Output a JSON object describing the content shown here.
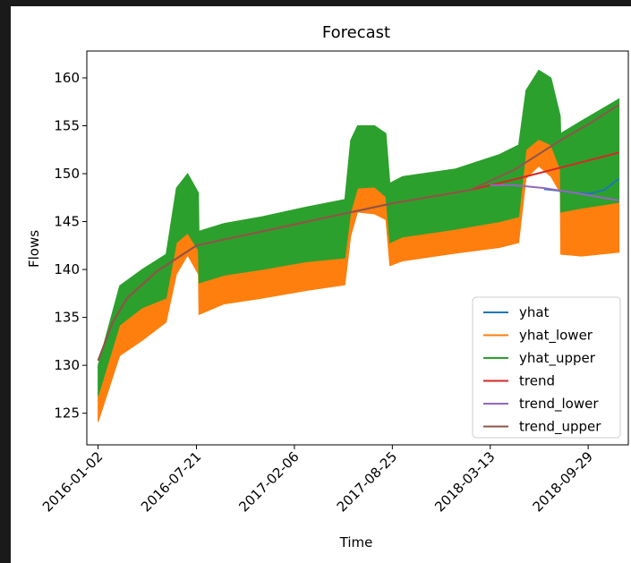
{
  "chart_data": {
    "type": "line",
    "title": "Forecast",
    "xlabel": "Time",
    "ylabel": "Flows",
    "x_range": [
      "2015-12-10",
      "2018-12-20"
    ],
    "ylim": [
      121.7,
      162.8
    ],
    "x_ticks": [
      "2016-01-02",
      "2016-07-21",
      "2017-02-06",
      "2017-08-25",
      "2018-03-13",
      "2018-09-29"
    ],
    "y_ticks": [
      125,
      130,
      135,
      140,
      145,
      150,
      155,
      160
    ],
    "grid": false,
    "legend_position": "lower right",
    "band_series": [
      {
        "name": "yhat_lower",
        "color": "#ff7f0e",
        "x": [
          "2016-01-02",
          "2016-02-15",
          "2016-04-01",
          "2016-05-20",
          "2016-06-10",
          "2016-07-03",
          "2016-07-25",
          "2016-07-26",
          "2016-09-15",
          "2016-12-01",
          "2017-03-01",
          "2017-05-20",
          "2017-06-01",
          "2017-06-15",
          "2017-07-20",
          "2017-08-12",
          "2017-08-20",
          "2017-09-15",
          "2018-01-01",
          "2018-04-01",
          "2018-05-10",
          "2018-05-25",
          "2018-06-20",
          "2018-07-15",
          "2018-08-03",
          "2018-08-04",
          "2018-09-15",
          "2018-12-01"
        ],
        "lo": [
          124.1,
          131.0,
          132.6,
          134.5,
          139.5,
          141.5,
          139.5,
          135.3,
          136.4,
          137.0,
          137.8,
          138.4,
          143.5,
          146.0,
          145.8,
          145.2,
          140.4,
          140.9,
          141.7,
          142.3,
          142.8,
          149.5,
          150.8,
          149.7,
          148.0,
          141.6,
          141.4,
          141.8
        ],
        "hi": [
          126.8,
          134.2,
          136.0,
          137.0,
          142.8,
          143.8,
          142.0,
          138.6,
          139.4,
          140.0,
          140.8,
          141.2,
          146.0,
          148.5,
          148.6,
          147.6,
          142.8,
          143.4,
          144.2,
          145.0,
          145.5,
          152.5,
          153.6,
          153.0,
          150.5,
          146.0,
          146.4,
          147.0
        ]
      },
      {
        "name": "yhat_upper",
        "color": "#2ca02c",
        "x": [
          "2016-01-02",
          "2016-02-15",
          "2016-04-01",
          "2016-05-20",
          "2016-06-10",
          "2016-07-03",
          "2016-07-25",
          "2016-07-26",
          "2016-09-15",
          "2016-12-01",
          "2017-03-01",
          "2017-05-20",
          "2017-06-01",
          "2017-06-15",
          "2017-07-20",
          "2017-08-12",
          "2017-08-20",
          "2017-09-15",
          "2018-01-01",
          "2018-04-01",
          "2018-05-10",
          "2018-05-25",
          "2018-06-20",
          "2018-07-15",
          "2018-08-03",
          "2018-08-04",
          "2018-09-15",
          "2018-12-01"
        ],
        "lo": [
          126.8,
          134.2,
          136.0,
          137.0,
          142.8,
          143.8,
          142.0,
          138.6,
          139.4,
          140.0,
          140.8,
          141.2,
          146.0,
          148.5,
          148.6,
          147.6,
          142.8,
          143.4,
          144.2,
          145.0,
          145.5,
          152.5,
          153.6,
          153.0,
          150.5,
          146.0,
          146.4,
          147.0
        ],
        "hi": [
          130.0,
          138.3,
          140.0,
          141.6,
          148.5,
          150.0,
          148.0,
          144.0,
          144.8,
          145.5,
          146.5,
          147.3,
          153.5,
          155.0,
          155.0,
          154.2,
          149.0,
          149.7,
          150.5,
          152.0,
          153.0,
          158.7,
          160.8,
          160.0,
          156.0,
          154.2,
          155.5,
          157.8
        ]
      }
    ],
    "series": [
      {
        "name": "yhat",
        "color": "#1f77b4",
        "x": [
          "2018-07-01",
          "2018-08-04",
          "2018-09-01",
          "2018-10-01",
          "2018-11-01",
          "2018-12-01"
        ],
        "y": [
          148.4,
          148.2,
          148.0,
          147.9,
          148.3,
          149.5
        ]
      },
      {
        "name": "yhat_lower",
        "color": "#ff7f0e",
        "x": [],
        "y": []
      },
      {
        "name": "yhat_upper",
        "color": "#2ca02c",
        "x": [],
        "y": []
      },
      {
        "name": "trend",
        "color": "#d62728",
        "x": [
          "2016-01-02",
          "2016-02-01",
          "2016-03-01",
          "2016-05-01",
          "2016-07-21",
          "2016-10-01",
          "2017-01-01",
          "2017-04-01",
          "2017-07-01",
          "2017-08-25",
          "2017-11-01",
          "2018-02-01",
          "2018-05-01",
          "2018-08-01",
          "2018-12-01"
        ],
        "y": [
          130.5,
          134.5,
          137.0,
          139.8,
          142.5,
          143.3,
          144.3,
          145.3,
          146.3,
          146.9,
          147.5,
          148.3,
          149.4,
          150.6,
          152.2
        ]
      },
      {
        "name": "trend_lower",
        "color": "#9467bd",
        "x": [
          "2018-03-13",
          "2018-05-01",
          "2018-07-01",
          "2018-09-01",
          "2018-12-01"
        ],
        "y": [
          148.8,
          148.8,
          148.5,
          148.0,
          147.2
        ]
      },
      {
        "name": "trend_upper",
        "color": "#8c564b",
        "x": [
          "2016-01-02",
          "2016-02-01",
          "2016-03-01",
          "2016-05-01",
          "2016-07-21",
          "2016-10-01",
          "2017-01-01",
          "2017-04-01",
          "2017-07-01",
          "2017-08-25",
          "2017-11-01",
          "2018-02-01",
          "2018-05-01",
          "2018-08-01",
          "2018-10-01",
          "2018-12-01"
        ],
        "y": [
          130.5,
          134.5,
          137.0,
          139.8,
          142.5,
          143.3,
          144.3,
          145.3,
          146.3,
          146.9,
          147.5,
          148.3,
          150.4,
          153.4,
          155.2,
          157.2
        ]
      }
    ]
  }
}
